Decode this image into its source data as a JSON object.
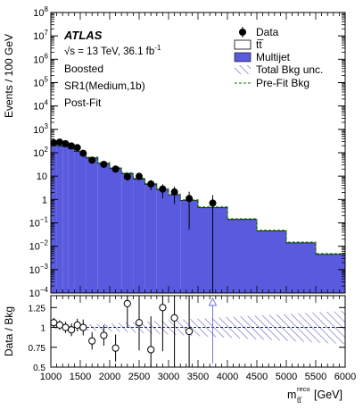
{
  "chart_data": {
    "type": "histogram",
    "x_unit_label": "[GeV]",
    "x_tick_labels": [
      "1000",
      "1500",
      "2000",
      "2500",
      "3000",
      "3500",
      "4000",
      "4500",
      "5000",
      "5500",
      "6000"
    ],
    "top_panel": {
      "ylabel": "Events / 100 GeV",
      "yscale": "log",
      "ylim": [
        0.0001,
        100000000
      ],
      "y_tick_labels": [
        {
          "v": 0.0001,
          "b": "10",
          "e": "−4"
        },
        {
          "v": 0.001,
          "b": "10",
          "e": "−3"
        },
        {
          "v": 0.01,
          "b": "10",
          "e": "−2"
        },
        {
          "v": 0.1,
          "b": "10",
          "e": "−1"
        },
        {
          "v": 1,
          "b": "1",
          "e": ""
        },
        {
          "v": 10,
          "b": "10",
          "e": ""
        },
        {
          "v": 100,
          "b": "10",
          "e": "2"
        },
        {
          "v": 1000,
          "b": "10",
          "e": "3"
        },
        {
          "v": 10000,
          "b": "10",
          "e": "4"
        },
        {
          "v": 100000,
          "b": "10",
          "e": "5"
        },
        {
          "v": 1000000,
          "b": "10",
          "e": "6"
        },
        {
          "v": 10000000,
          "b": "10",
          "e": "7"
        },
        {
          "v": 100000000,
          "b": "10",
          "e": "8"
        }
      ],
      "bin_edges": [
        1000,
        1100,
        1200,
        1300,
        1400,
        1500,
        1600,
        1800,
        2000,
        2200,
        2400,
        2600,
        2800,
        3000,
        3200,
        3500,
        4000,
        4500,
        5000,
        5500,
        6000
      ],
      "multijet": [
        210,
        200,
        185,
        150,
        115,
        88,
        60,
        35,
        22,
        13,
        7.5,
        4.4,
        2.7,
        1.6,
        0.9,
        0.45,
        0.14,
        0.045,
        0.014,
        0.0045
      ],
      "data_points": [
        {
          "x": 1050,
          "y": 265
        },
        {
          "x": 1150,
          "y": 285
        },
        {
          "x": 1250,
          "y": 245
        },
        {
          "x": 1350,
          "y": 195
        },
        {
          "x": 1450,
          "y": 165
        },
        {
          "x": 1550,
          "y": 95
        },
        {
          "x": 1700,
          "y": 48
        },
        {
          "x": 1900,
          "y": 32
        },
        {
          "x": 2100,
          "y": 20
        },
        {
          "x": 2300,
          "y": 9.5
        },
        {
          "x": 2500,
          "y": 9.8
        },
        {
          "x": 2700,
          "y": 4.6
        },
        {
          "x": 2900,
          "y": 2.8
        },
        {
          "x": 3100,
          "y": 2.1
        },
        {
          "x": 3350,
          "y": 1.1
        },
        {
          "x": 3750,
          "y": 0.7
        }
      ]
    },
    "ratio_panel": {
      "ylabel": "Data / Bkg",
      "ylim": [
        0.5,
        1.4
      ],
      "y_tick_labels": [
        "0.5",
        "0.75",
        "1",
        "1.25"
      ],
      "y_tick_values": [
        0.5,
        0.75,
        1.0,
        1.25
      ],
      "points": [
        {
          "x": 1050,
          "y": 1.06,
          "err": 0.06
        },
        {
          "x": 1150,
          "y": 1.03,
          "err": 0.06
        },
        {
          "x": 1250,
          "y": 1.0,
          "err": 0.07
        },
        {
          "x": 1350,
          "y": 0.97,
          "err": 0.08
        },
        {
          "x": 1450,
          "y": 1.03,
          "err": 0.08
        },
        {
          "x": 1550,
          "y": 1.0,
          "err": 0.1
        },
        {
          "x": 1700,
          "y": 0.83,
          "err": 0.11
        },
        {
          "x": 1900,
          "y": 0.9,
          "err": 0.13
        },
        {
          "x": 2100,
          "y": 0.74,
          "err": 0.17
        },
        {
          "x": 2300,
          "y": 1.3,
          "err": 0.3
        },
        {
          "x": 2500,
          "y": 1.06,
          "err": 0.35
        },
        {
          "x": 2700,
          "y": 0.72,
          "err": 0.42
        },
        {
          "x": 2900,
          "y": 1.25,
          "err": 0.55
        },
        {
          "x": 3100,
          "y": 1.12,
          "err": 0.7
        },
        {
          "x": 3350,
          "y": 0.95,
          "err": 0.95
        }
      ],
      "overflow_arrow_x": 3750,
      "unc_band": [
        {
          "x": 1000,
          "half": 0.02
        },
        {
          "x": 2000,
          "half": 0.05
        },
        {
          "x": 3000,
          "half": 0.09
        },
        {
          "x": 4000,
          "half": 0.13
        },
        {
          "x": 5000,
          "half": 0.17
        },
        {
          "x": 6000,
          "half": 0.21
        }
      ]
    },
    "legend": {
      "placement": "top-right",
      "items": [
        "Data",
        "tt̅",
        "Multijet",
        "Total Bkg unc.",
        "Pre-Fit Bkg"
      ]
    },
    "labels": {
      "experiment": "ATLAS",
      "energy_lumi": "√s = 13 TeV, 36.1 fb",
      "lumi_exp": "-1",
      "category": "Boosted",
      "region": "SR1(Medium,1b)",
      "stage": "Post-Fit"
    },
    "colors": {
      "multijet": "#5a5ade",
      "unc_hatch": "#6666cc",
      "prefit": "#2e9a2e"
    }
  }
}
